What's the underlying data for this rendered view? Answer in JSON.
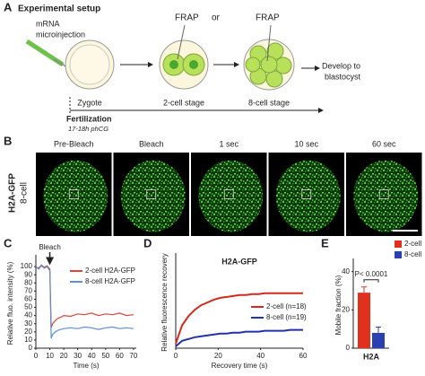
{
  "panel_a": {
    "label": "A",
    "title": "Experimental setup",
    "injection_lines": [
      "mRNA",
      "microinjection"
    ],
    "frap_left": "FRAP",
    "or": "or",
    "frap_right": "FRAP",
    "stages": [
      "Zygote",
      "2-cell stage",
      "8-cell stage"
    ],
    "develop_lines": [
      "Develop to",
      "blastocyst"
    ],
    "fertilization": "Fertilization",
    "timing": "17-18h phCG"
  },
  "panel_b": {
    "label": "B",
    "row_label_lines": [
      "H2A-GFP",
      "8-cell"
    ],
    "timepoints": [
      "Pre-Bleach",
      "Bleach",
      "1 sec",
      "10 sec",
      "60 sec"
    ]
  },
  "chart_data": [
    {
      "panel": "C",
      "type": "line",
      "ylabel": "Relative fluo. intensity (%)",
      "xlabel": "Time (s)",
      "annotation": {
        "text": "Bleach",
        "x": 10
      },
      "x": [
        0,
        2,
        4,
        6,
        8,
        10,
        11,
        12,
        14,
        16,
        18,
        20,
        25,
        30,
        35,
        40,
        45,
        50,
        55,
        60,
        65,
        70
      ],
      "xlim": [
        0,
        72
      ],
      "xticks": [
        0,
        10,
        20,
        30,
        40,
        50,
        60,
        70
      ],
      "ylim": [
        0,
        110
      ],
      "yticks": [
        0,
        10,
        20,
        30,
        40,
        50,
        60,
        70,
        80,
        90,
        100
      ],
      "series": [
        {
          "name": "2-cell H2A-GFP",
          "color": "#d9463b",
          "values": [
            100,
            98,
            102,
            99,
            101,
            97,
            25,
            30,
            34,
            37,
            38,
            40,
            39,
            42,
            41,
            43,
            40,
            42,
            41,
            43,
            40,
            41
          ]
        },
        {
          "name": "8-cell H2A-GFP",
          "color": "#5b8fd6",
          "values": [
            100,
            97,
            101,
            98,
            100,
            95,
            12,
            17,
            20,
            22,
            23,
            24,
            25,
            24,
            26,
            25,
            23,
            25,
            26,
            24,
            25,
            24
          ]
        }
      ]
    },
    {
      "panel": "D",
      "type": "line",
      "title": "H2A-GFP",
      "ylabel": "Relative fluorescence recovery",
      "xlabel": "Recovery time (s)",
      "x": [
        0,
        3,
        6,
        9,
        12,
        15,
        18,
        21,
        24,
        27,
        30,
        33,
        36,
        39,
        42,
        45,
        48,
        51,
        54,
        57,
        60
      ],
      "xlim": [
        0,
        60
      ],
      "xticks": [
        0,
        20,
        40,
        60
      ],
      "ylim": [
        0,
        1
      ],
      "series": [
        {
          "name": "2-cell (n=18)",
          "color": "#d32a1e",
          "values": [
            0.05,
            0.25,
            0.35,
            0.42,
            0.47,
            0.5,
            0.53,
            0.55,
            0.56,
            0.57,
            0.58,
            0.58,
            0.59,
            0.59,
            0.6,
            0.6,
            0.6,
            0.6,
            0.6,
            0.6,
            0.6
          ]
        },
        {
          "name": "8-cell (n=19)",
          "color": "#2233aa",
          "values": [
            0.02,
            0.08,
            0.1,
            0.12,
            0.13,
            0.14,
            0.15,
            0.16,
            0.16,
            0.17,
            0.17,
            0.18,
            0.18,
            0.18,
            0.19,
            0.19,
            0.19,
            0.19,
            0.2,
            0.2,
            0.2
          ]
        }
      ]
    },
    {
      "panel": "E",
      "type": "bar",
      "ylabel": "Mobile fraction (%)",
      "categories": [
        "H2A"
      ],
      "annotation": "P< 0.0001",
      "ylim": [
        0,
        45
      ],
      "yticks": [
        0,
        20,
        40
      ],
      "series": [
        {
          "name": "2-cell",
          "color": "#e0301e",
          "values": [
            29
          ],
          "errors": [
            3
          ]
        },
        {
          "name": "8-cell",
          "color": "#2a3fb0",
          "values": [
            8
          ],
          "errors": [
            3
          ]
        }
      ]
    }
  ]
}
